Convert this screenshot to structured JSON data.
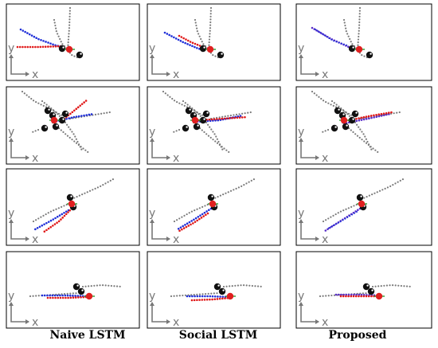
{
  "columns": [
    "Naive LSTM",
    "Social LSTM",
    "Proposed"
  ],
  "axis_labels": {
    "x": "x",
    "y": "y"
  },
  "colors": {
    "context_track": "#7a7a7a",
    "prediction_blue": "#1f2fd8",
    "prediction_red": "#e01818",
    "proposed_purple": "#5a2fc8",
    "agent": "#111111",
    "focal_agent": "#e02020",
    "focal_marker": "#2a9a2a",
    "frame": "#000000"
  },
  "panels": [
    {
      "row": 1,
      "column": "Naive LSTM"
    },
    {
      "row": 1,
      "column": "Social LSTM"
    },
    {
      "row": 1,
      "column": "Proposed"
    },
    {
      "row": 2,
      "column": "Naive LSTM"
    },
    {
      "row": 2,
      "column": "Social LSTM"
    },
    {
      "row": 2,
      "column": "Proposed"
    },
    {
      "row": 3,
      "column": "Naive LSTM"
    },
    {
      "row": 3,
      "column": "Social LSTM"
    },
    {
      "row": 3,
      "column": "Proposed"
    },
    {
      "row": 4,
      "column": "Naive LSTM"
    },
    {
      "row": 4,
      "column": "Social LSTM"
    },
    {
      "row": 4,
      "column": "Proposed"
    }
  ]
}
